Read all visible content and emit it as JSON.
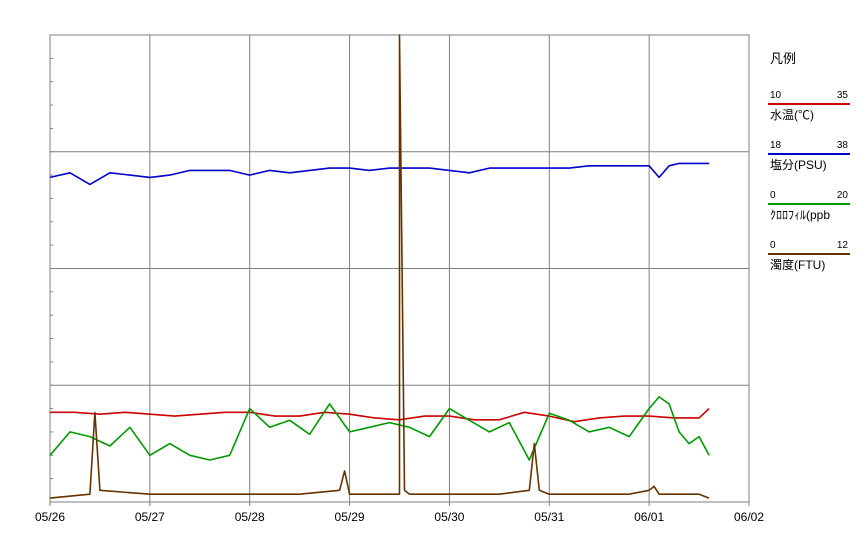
{
  "legend": {
    "title": "凡例",
    "items": [
      {
        "label": "水温(℃)",
        "min": "10",
        "max": "35",
        "color": "#cc0000"
      },
      {
        "label": "塩分(PSU)",
        "min": "18",
        "max": "38",
        "color": "#0000cc"
      },
      {
        "label": "ｸﾛﾛﾌｨﾙ(ppb",
        "min": "0",
        "max": "20",
        "color": "#009900"
      },
      {
        "label": "濁度(FTU)",
        "min": "0",
        "max": "12",
        "color": "#663300"
      }
    ]
  },
  "chart_data": {
    "type": "line",
    "x_tick_labels": [
      "05/26",
      "05/27",
      "05/28",
      "05/29",
      "05/30",
      "05/31",
      "06/01",
      "06/02"
    ],
    "x_unit": "days from 05/26 00:00",
    "xlim": [
      0,
      7
    ],
    "grid": true,
    "series": [
      {
        "name": "水温(℃)",
        "color": "#cc0000",
        "ylim": [
          10,
          35
        ],
        "x": [
          0,
          0.25,
          0.5,
          0.75,
          1.0,
          1.25,
          1.5,
          1.75,
          2.0,
          2.25,
          2.5,
          2.75,
          3.0,
          3.25,
          3.5,
          3.75,
          4.0,
          4.25,
          4.5,
          4.75,
          5.0,
          5.25,
          5.5,
          5.75,
          6.0,
          6.25,
          6.5,
          6.6
        ],
        "values": [
          14.8,
          14.8,
          14.7,
          14.8,
          14.7,
          14.6,
          14.7,
          14.8,
          14.8,
          14.6,
          14.6,
          14.8,
          14.7,
          14.5,
          14.4,
          14.6,
          14.6,
          14.4,
          14.4,
          14.8,
          14.6,
          14.3,
          14.5,
          14.6,
          14.6,
          14.5,
          14.5,
          15.0
        ]
      },
      {
        "name": "塩分(PSU)",
        "color": "#0000cc",
        "ylim": [
          18,
          38
        ],
        "x": [
          0,
          0.2,
          0.4,
          0.6,
          0.8,
          1.0,
          1.2,
          1.4,
          1.6,
          1.8,
          2.0,
          2.2,
          2.4,
          2.6,
          2.8,
          3.0,
          3.2,
          3.4,
          3.6,
          3.8,
          4.0,
          4.2,
          4.4,
          4.6,
          4.8,
          5.0,
          5.2,
          5.4,
          5.6,
          5.8,
          6.0,
          6.1,
          6.2,
          6.3,
          6.6
        ],
        "values": [
          31.9,
          32.1,
          31.6,
          32.1,
          32.0,
          31.9,
          32.0,
          32.2,
          32.2,
          32.2,
          32.0,
          32.2,
          32.1,
          32.2,
          32.3,
          32.3,
          32.2,
          32.3,
          32.3,
          32.3,
          32.2,
          32.1,
          32.3,
          32.3,
          32.3,
          32.3,
          32.3,
          32.4,
          32.4,
          32.4,
          32.4,
          31.9,
          32.4,
          32.5,
          32.5
        ]
      },
      {
        "name": "ｸﾛﾛﾌｨﾙ(ppb",
        "color": "#009900",
        "ylim": [
          0,
          20
        ],
        "x": [
          0,
          0.2,
          0.4,
          0.6,
          0.8,
          1.0,
          1.2,
          1.4,
          1.6,
          1.8,
          2.0,
          2.2,
          2.4,
          2.6,
          2.8,
          3.0,
          3.2,
          3.4,
          3.6,
          3.8,
          4.0,
          4.2,
          4.4,
          4.6,
          4.8,
          5.0,
          5.2,
          5.4,
          5.6,
          5.8,
          6.0,
          6.1,
          6.2,
          6.3,
          6.4,
          6.5,
          6.6
        ],
        "values": [
          2.0,
          3.0,
          2.8,
          2.4,
          3.2,
          2.0,
          2.5,
          2.0,
          1.8,
          2.0,
          4.0,
          3.2,
          3.5,
          2.9,
          4.2,
          3.0,
          3.2,
          3.4,
          3.2,
          2.8,
          4.0,
          3.5,
          3.0,
          3.4,
          1.8,
          3.8,
          3.5,
          3.0,
          3.2,
          2.8,
          4.0,
          4.5,
          4.2,
          3.0,
          2.5,
          2.8,
          2.0
        ]
      },
      {
        "name": "濁度(FTU)",
        "color": "#663300",
        "ylim": [
          0,
          12
        ],
        "x": [
          0,
          0.4,
          0.45,
          0.5,
          1.0,
          1.5,
          2.0,
          2.5,
          2.9,
          2.95,
          3.0,
          3.5,
          3.5,
          3.55,
          3.6,
          4.0,
          4.5,
          4.8,
          4.85,
          4.9,
          5.0,
          5.5,
          5.8,
          6.0,
          6.05,
          6.1,
          6.5,
          6.6
        ],
        "values": [
          0.1,
          0.2,
          2.3,
          0.3,
          0.2,
          0.2,
          0.2,
          0.2,
          0.3,
          0.8,
          0.2,
          0.2,
          12.0,
          0.3,
          0.2,
          0.2,
          0.2,
          0.3,
          1.5,
          0.3,
          0.2,
          0.2,
          0.2,
          0.3,
          0.4,
          0.2,
          0.2,
          0.1
        ]
      }
    ]
  }
}
